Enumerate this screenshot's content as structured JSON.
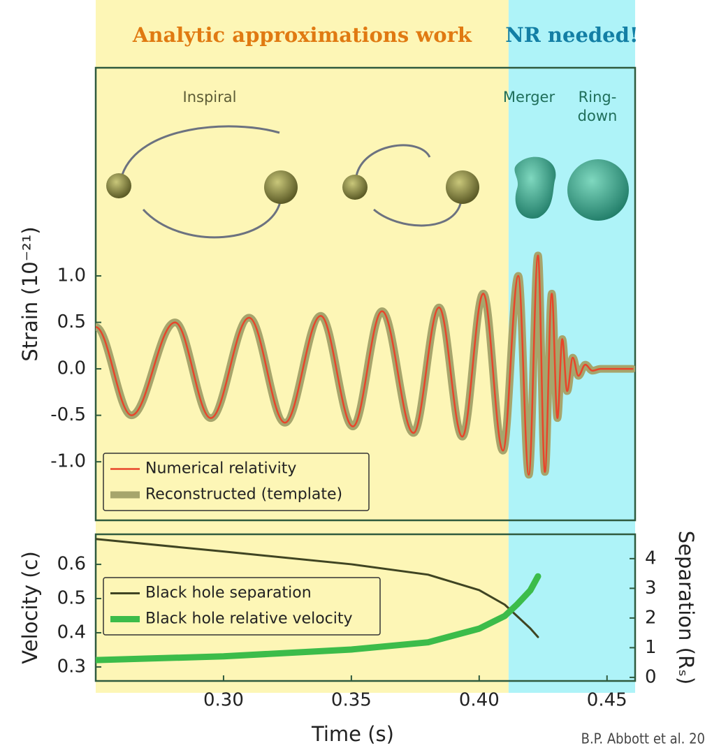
{
  "chart_data": [
    {
      "type": "line",
      "regions": [
        {
          "label": "Analytic approximations work",
          "xlim": [
            0.25,
            0.4115
          ],
          "color": "#fdf6b6",
          "label_color": "#e07a12"
        },
        {
          "label": "NR needed!",
          "xlim": [
            0.4115,
            0.461
          ],
          "color": "#aef3f8",
          "label_color": "#137fa5"
        }
      ],
      "phase_labels": [
        "Inspiral",
        "Merger",
        "Ring-",
        "down"
      ],
      "y_label": "Strain (10⁻²¹)",
      "xlim": [
        0.25,
        0.461
      ],
      "ylim": [
        -1.63,
        3.24
      ],
      "yticks": [
        {
          "value": 1,
          "label": "1.0"
        },
        {
          "value": 0.5,
          "label": "0.5"
        },
        {
          "value": 0,
          "label": "0.0"
        },
        {
          "value": -0.5,
          "label": "-0.5"
        },
        {
          "value": -1,
          "label": "-1.0"
        }
      ],
      "legend": "lower left",
      "x": [
        0.25,
        0.264,
        0.281,
        0.295,
        0.31,
        0.324,
        0.338,
        0.3506,
        0.362,
        0.3743,
        0.3843,
        0.3934,
        0.4016,
        0.4093,
        0.4153,
        0.4194,
        0.423,
        0.4257,
        0.4284,
        0.4306,
        0.4325,
        0.4344,
        0.4366,
        0.4388,
        0.4415,
        0.4443,
        0.4475,
        0.46
      ],
      "series": [
        {
          "name": "Reconstructed (template)",
          "color": "#a6a56c",
          "width": 11,
          "values": [
            0.45,
            -0.5,
            0.5,
            -0.53,
            0.55,
            -0.58,
            0.57,
            -0.62,
            0.62,
            -0.69,
            0.66,
            -0.73,
            0.81,
            -0.88,
            1.0,
            -1.14,
            1.22,
            -1.11,
            0.81,
            -0.53,
            0.32,
            -0.24,
            0.12,
            -0.075,
            0.045,
            -0.02,
            0,
            0
          ]
        },
        {
          "name": "Numerical relativity",
          "color": "#e8452a",
          "width": 2.5,
          "values": [
            0.45,
            -0.5,
            0.5,
            -0.53,
            0.55,
            -0.58,
            0.57,
            -0.62,
            0.62,
            -0.69,
            0.66,
            -0.73,
            0.81,
            -0.88,
            1.0,
            -1.14,
            1.22,
            -1.11,
            0.81,
            -0.53,
            0.32,
            -0.24,
            0.12,
            -0.075,
            0.045,
            -0.02,
            0,
            0
          ]
        }
      ]
    },
    {
      "type": "line",
      "x_label": "Time (s)",
      "y_label": "Velocity (c)",
      "y2_label": "Separation (Rₛ)",
      "source": "B.P. Abbott et al. 20",
      "xlim": [
        0.25,
        0.461
      ],
      "xticks": [
        {
          "value": 0.3,
          "label": "0.30"
        },
        {
          "value": 0.35,
          "label": "0.35"
        },
        {
          "value": 0.4,
          "label": "0.40"
        },
        {
          "value": 0.45,
          "label": "0.45"
        }
      ],
      "ylim": [
        0.259,
        0.688
      ],
      "yticks": [
        0.3,
        0.4,
        0.5,
        0.6
      ],
      "y2lim": [
        -0.12,
        4.82
      ],
      "y2ticks": [
        0,
        1,
        2,
        3,
        4
      ],
      "legend": "center left",
      "x": [
        0.25,
        0.3,
        0.35,
        0.38,
        0.4,
        0.41,
        0.415,
        0.42,
        0.423
      ],
      "series": [
        {
          "name": "Black hole separation",
          "color": "#3f4422",
          "width": 3,
          "axis": "y2",
          "values": [
            4.66,
            4.24,
            3.81,
            3.46,
            2.94,
            2.45,
            2.05,
            1.65,
            1.36
          ]
        },
        {
          "name": "Black hole relative velocity",
          "color": "#3cbc4a",
          "width": 9,
          "values": [
            0.32,
            0.331,
            0.351,
            0.372,
            0.412,
            0.449,
            0.484,
            0.524,
            0.565
          ]
        }
      ]
    }
  ]
}
